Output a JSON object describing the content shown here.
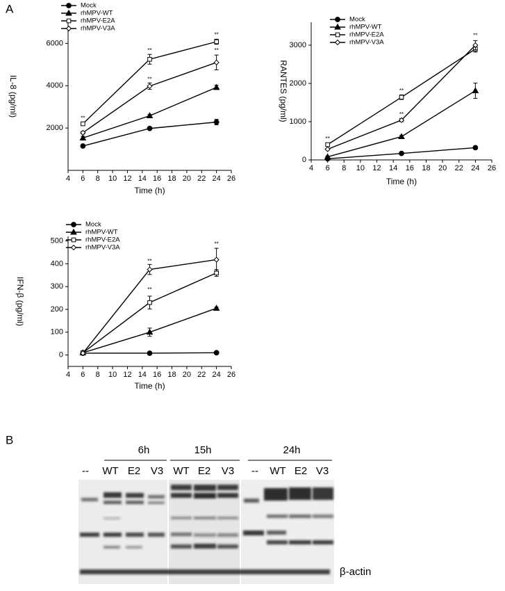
{
  "panels": {
    "a": "A",
    "b": "B"
  },
  "chart_data": [
    {
      "type": "line",
      "xlabel": "Time (h)",
      "ylabel": "IL-8 (pg/ml)",
      "x": [
        6,
        15,
        24
      ],
      "xlim": [
        4,
        26
      ],
      "xticks": [
        4,
        6,
        8,
        10,
        12,
        14,
        16,
        18,
        20,
        22,
        24,
        26
      ],
      "ylim": [
        0,
        7000
      ],
      "yticks": [
        2000,
        4000,
        6000
      ],
      "legend": "top-left",
      "series": [
        {
          "name": "Mock",
          "color": "#000000",
          "marker": "circle",
          "values": [
            1150,
            1980,
            2280
          ],
          "errors": [
            50,
            40,
            130
          ]
        },
        {
          "name": "rhMPV-WT",
          "color": "#000000",
          "marker": "triangle",
          "values": [
            1530,
            2580,
            3920
          ],
          "errors": [
            80,
            60,
            100
          ]
        },
        {
          "name": "rhMPV-E2A",
          "color": "#000000",
          "marker": "square",
          "values": [
            2200,
            5250,
            6080
          ],
          "errors": [
            60,
            230,
            120
          ]
        },
        {
          "name": "rhMPV-V3A",
          "color": "#000000",
          "marker": "diamond",
          "values": [
            1780,
            3980,
            5100
          ],
          "errors": [
            60,
            150,
            350
          ]
        }
      ],
      "annotations": [
        {
          "text": "**",
          "x": 6,
          "y": 2450
        },
        {
          "text": "**",
          "x": 15,
          "y": 5650
        },
        {
          "text": "**",
          "x": 15,
          "y": 4300
        },
        {
          "text": "**",
          "x": 24,
          "y": 6400
        },
        {
          "text": "**",
          "x": 24,
          "y": 5650
        }
      ]
    },
    {
      "type": "line",
      "xlabel": "Time (h)",
      "ylabel": "RANTES (pg/ml)",
      "x": [
        6,
        15,
        24
      ],
      "xlim": [
        4,
        26
      ],
      "xticks": [
        4,
        6,
        8,
        10,
        12,
        14,
        16,
        18,
        20,
        22,
        24,
        26
      ],
      "ylim": [
        0,
        3600
      ],
      "yticks": [
        0,
        1000,
        2000,
        3000
      ],
      "legend": "top-left",
      "series": [
        {
          "name": "Mock",
          "color": "#000000",
          "marker": "circle",
          "values": [
            30,
            170,
            320
          ],
          "errors": [
            10,
            20,
            20
          ]
        },
        {
          "name": "rhMPV-WT",
          "color": "#000000",
          "marker": "triangle",
          "values": [
            80,
            610,
            1810
          ],
          "errors": [
            20,
            30,
            200
          ]
        },
        {
          "name": "rhMPV-E2A",
          "color": "#000000",
          "marker": "square",
          "values": [
            400,
            1640,
            2900
          ],
          "errors": [
            30,
            60,
            80
          ]
        },
        {
          "name": "rhMPV-V3A",
          "color": "#000000",
          "marker": "diamond",
          "values": [
            280,
            1040,
            3000
          ],
          "errors": [
            20,
            40,
            120
          ]
        }
      ],
      "annotations": [
        {
          "text": "**",
          "x": 6,
          "y": 550
        },
        {
          "text": "**",
          "x": 15,
          "y": 1800
        },
        {
          "text": "**",
          "x": 15,
          "y": 1180
        },
        {
          "text": "**",
          "x": 24,
          "y": 3250
        }
      ]
    },
    {
      "type": "line",
      "xlabel": "Time (h)",
      "ylabel": "IFN-β (pg/ml)",
      "x": [
        6,
        15,
        24
      ],
      "xlim": [
        4,
        26
      ],
      "xticks": [
        4,
        6,
        8,
        10,
        12,
        14,
        16,
        18,
        20,
        22,
        24,
        26
      ],
      "ylim": [
        -50,
        520
      ],
      "yticks": [
        0,
        100,
        200,
        300,
        400,
        500
      ],
      "legend": "top-left",
      "series": [
        {
          "name": "Mock",
          "color": "#000000",
          "marker": "circle",
          "values": [
            8,
            8,
            10
          ],
          "errors": [
            3,
            3,
            3
          ]
        },
        {
          "name": "rhMPV-WT",
          "color": "#000000",
          "marker": "triangle",
          "values": [
            10,
            100,
            205
          ],
          "errors": [
            5,
            18,
            5
          ]
        },
        {
          "name": "rhMPV-E2A",
          "color": "#000000",
          "marker": "square",
          "values": [
            10,
            230,
            360
          ],
          "errors": [
            5,
            28,
            15
          ]
        },
        {
          "name": "rhMPV-V3A",
          "color": "#000000",
          "marker": "diamond",
          "values": [
            8,
            375,
            418
          ],
          "errors": [
            5,
            22,
            50
          ]
        }
      ],
      "annotations": [
        {
          "text": "**",
          "x": 15,
          "y": 410
        },
        {
          "text": "**",
          "x": 15,
          "y": 285
        },
        {
          "text": "**",
          "x": 24,
          "y": 485
        }
      ]
    }
  ],
  "blot": {
    "groups": [
      "6h",
      "15h",
      "24h"
    ],
    "lanes": [
      "--",
      "WT",
      "E2",
      "V3",
      "WT",
      "E2",
      "V3",
      "--",
      "WT",
      "E2",
      "V3"
    ],
    "loading": "β-actin"
  }
}
